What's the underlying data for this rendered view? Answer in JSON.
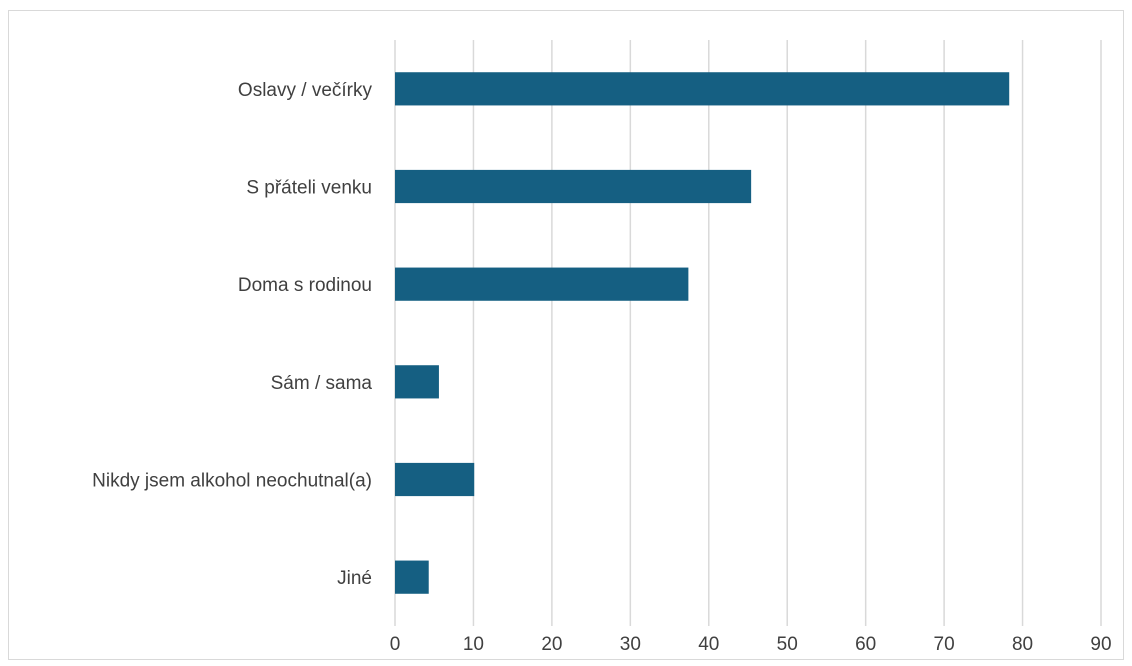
{
  "chart_data": {
    "type": "bar",
    "orientation": "horizontal",
    "categories": [
      "Oslavy / večírky",
      "S přáteli venku",
      "Doma s rodinou",
      "Sám / sama",
      "Nikdy jsem alkohol neochutnal(a)",
      "Jiné"
    ],
    "values": [
      78.3,
      45.4,
      37.4,
      5.6,
      10.1,
      4.3
    ],
    "xlim": [
      0,
      90
    ],
    "xticks": [
      "0",
      "10",
      "20",
      "30",
      "40",
      "50",
      "60",
      "70",
      "80",
      "90"
    ],
    "grid": true,
    "legend": "none",
    "bar_color": "#155f82",
    "title": "",
    "xlabel": "",
    "ylabel": ""
  }
}
